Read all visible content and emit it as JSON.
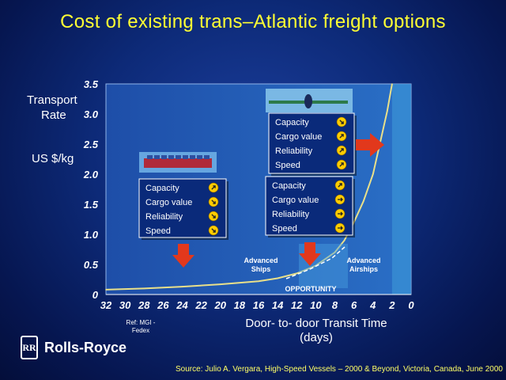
{
  "slide": {
    "title": "Cost of existing trans–Atlantic freight options",
    "ylabel_line1": "Transport",
    "ylabel_line2": "Rate",
    "ylabel_unit": "US $/kg",
    "xlabel_line1": "Door- to- door Transit Time",
    "xlabel_line2": "(days)",
    "ref_note": "Ref: MGI - Fedex",
    "logo_text": "Rolls-Royce",
    "logo_badge": "RR",
    "source": "Source: Julio A. Vergara, High-Speed Vessels – 2000 & Beyond, Victoria, Canada, June 2000"
  },
  "colors": {
    "title": "#ffff33",
    "plot_bg": "#1b5fb6",
    "curve": "#e9e08a",
    "arrow": "#e2381c",
    "panel_bg": "#0a2a7a",
    "check_icon": "#ffcc00"
  },
  "chart_data": {
    "type": "line",
    "x_reversed": true,
    "xlim": [
      32,
      0
    ],
    "ylim": [
      0,
      3.5
    ],
    "x_ticks": [
      "32",
      "30",
      "28",
      "26",
      "24",
      "22",
      "20",
      "18",
      "16",
      "14",
      "12",
      "10",
      "8",
      "6",
      "4",
      "2",
      "0"
    ],
    "y_ticks": [
      "0",
      "0.5",
      "1.0",
      "1.5",
      "2.0",
      "2.5",
      "3.0",
      "3.5"
    ],
    "series": [
      {
        "x": [
          32,
          28,
          24,
          20,
          16,
          14,
          12,
          10,
          8,
          7,
          6,
          5,
          4,
          3.5,
          3,
          2.5,
          2
        ],
        "y": [
          0.08,
          0.1,
          0.13,
          0.17,
          0.22,
          0.27,
          0.35,
          0.48,
          0.7,
          0.9,
          1.2,
          1.55,
          2.0,
          2.35,
          2.7,
          3.05,
          3.5
        ]
      }
    ],
    "annotations": [
      {
        "text": "Advanced",
        "text2": "Ships"
      },
      {
        "text": "Advanced",
        "text2": "Airships"
      },
      {
        "text": "OPPORTUNITY"
      }
    ],
    "panels": [
      {
        "label": "sea-freight",
        "items": [
          "Capacity",
          "Cargo value",
          "Reliability",
          "Speed"
        ],
        "marks": [
          "up",
          "down",
          "down",
          "down"
        ]
      },
      {
        "label": "air-freight-high",
        "items": [
          "Capacity",
          "Cargo value",
          "Reliability",
          "Speed"
        ],
        "marks": [
          "down",
          "up",
          "up",
          "up"
        ]
      },
      {
        "label": "air-freight-low",
        "items": [
          "Capacity",
          "Cargo value",
          "Reliability",
          "Speed"
        ],
        "marks": [
          "up",
          "right",
          "right",
          "right"
        ]
      }
    ]
  }
}
